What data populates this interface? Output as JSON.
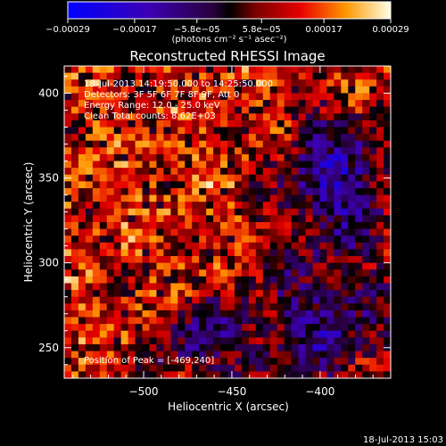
{
  "chart_data": {
    "type": "heatmap",
    "title": "Reconstructed RHESSI Image",
    "xlabel": "Heliocentric X (arcsec)",
    "ylabel": "Heliocentric Y (arcsec)",
    "xlim": [
      -545,
      -360
    ],
    "ylim": [
      232,
      416
    ],
    "x_ticks": [
      -500,
      -450,
      -400
    ],
    "y_ticks": [
      250,
      300,
      350,
      400
    ],
    "x_tick_labels": [
      "−500",
      "−450",
      "−400"
    ],
    "y_tick_labels": [
      "250",
      "300",
      "350",
      "400"
    ],
    "colorbar": {
      "range": [
        -0.00029,
        0.00029
      ],
      "ticks": [
        -0.00029,
        -0.00017,
        -5.8e-05,
        5.8e-05,
        0.00017,
        0.00029
      ],
      "tick_labels": [
        "−0.00029",
        "−0.00017",
        "−5.8e−05",
        "5.8e−05",
        "0.00017",
        "0.00029"
      ],
      "unit": "(photons cm⁻² s⁻¹ asec⁻²)"
    },
    "annotations": [
      "18-Jul-2013 14:19:50.000 to 14:25:50.000",
      "Detectors: 3F 5F 6F 7F 8F 9F, Att 0",
      "Energy Range: 12.0 - 25.0 keV",
      "Clean     Total counts: 8.62E+03"
    ],
    "peak_label": "Position of Peak = [-469,240]",
    "peak_position": [
      -469,
      240
    ],
    "grid": false
  },
  "footer": {
    "timestamp": "18-Jul-2013 15:03"
  }
}
